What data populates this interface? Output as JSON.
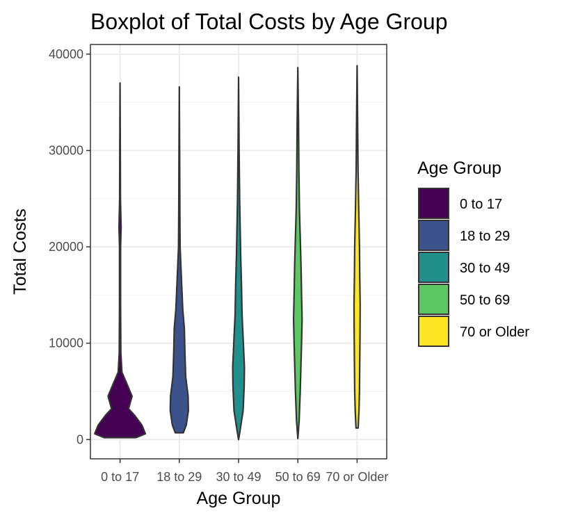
{
  "chart_data": {
    "type": "violin",
    "title": "Boxplot of Total Costs by Age Group",
    "xlabel": "Age Group",
    "ylabel": "Total Costs",
    "ylim": [
      -2000,
      41000
    ],
    "yticks": [
      0,
      10000,
      20000,
      30000,
      40000
    ],
    "ytick_labels": [
      "0",
      "10000",
      "20000",
      "30000",
      "40000"
    ],
    "grid": true,
    "legend": {
      "title": "Age Group",
      "position": "right"
    },
    "categories": [
      "0 to 17",
      "18 to 29",
      "30 to 49",
      "50 to 69",
      "70 or Older"
    ],
    "colors": [
      "#440154",
      "#3B528B",
      "#21908C",
      "#5DC863",
      "#FDE725"
    ],
    "series": [
      {
        "name": "0 to 17",
        "range": [
          200,
          37000
        ],
        "profile": [
          [
            200,
            0.6
          ],
          [
            600,
            0.95
          ],
          [
            1500,
            0.82
          ],
          [
            2500,
            0.55
          ],
          [
            3200,
            0.32
          ],
          [
            4500,
            0.45
          ],
          [
            5500,
            0.3
          ],
          [
            7000,
            0.07
          ],
          [
            9000,
            0.03
          ],
          [
            14000,
            0.02
          ],
          [
            20000,
            0.02
          ],
          [
            22000,
            0.04
          ],
          [
            25000,
            0.015
          ],
          [
            30000,
            0.01
          ],
          [
            37000,
            0.0
          ]
        ]
      },
      {
        "name": "18 to 29",
        "range": [
          700,
          36600
        ],
        "profile": [
          [
            700,
            0.15
          ],
          [
            1500,
            0.26
          ],
          [
            3000,
            0.34
          ],
          [
            4500,
            0.33
          ],
          [
            6500,
            0.24
          ],
          [
            9000,
            0.21
          ],
          [
            11500,
            0.19
          ],
          [
            13500,
            0.13
          ],
          [
            16000,
            0.09
          ],
          [
            18000,
            0.06
          ],
          [
            20000,
            0.03
          ],
          [
            24000,
            0.02
          ],
          [
            30000,
            0.012
          ],
          [
            36600,
            0.0
          ]
        ]
      },
      {
        "name": "30 to 49",
        "range": [
          0,
          37600
        ],
        "profile": [
          [
            0,
            0.0
          ],
          [
            1000,
            0.06
          ],
          [
            3000,
            0.17
          ],
          [
            5500,
            0.21
          ],
          [
            7500,
            0.22
          ],
          [
            10000,
            0.18
          ],
          [
            13000,
            0.13
          ],
          [
            16000,
            0.11
          ],
          [
            19000,
            0.08
          ],
          [
            22000,
            0.06
          ],
          [
            25000,
            0.04
          ],
          [
            30000,
            0.02
          ],
          [
            37600,
            0.0
          ]
        ]
      },
      {
        "name": "50 to 69",
        "range": [
          100,
          38600
        ],
        "profile": [
          [
            100,
            0.0
          ],
          [
            2000,
            0.05
          ],
          [
            5000,
            0.09
          ],
          [
            8000,
            0.12
          ],
          [
            10000,
            0.14
          ],
          [
            12500,
            0.16
          ],
          [
            15000,
            0.14
          ],
          [
            18000,
            0.12
          ],
          [
            21000,
            0.09
          ],
          [
            24000,
            0.06
          ],
          [
            28000,
            0.04
          ],
          [
            33000,
            0.025
          ],
          [
            38600,
            0.0
          ]
        ]
      },
      {
        "name": "70 or Older",
        "range": [
          1200,
          38800
        ],
        "profile": [
          [
            1200,
            0.04
          ],
          [
            3000,
            0.07
          ],
          [
            5000,
            0.09
          ],
          [
            8000,
            0.1
          ],
          [
            11000,
            0.11
          ],
          [
            14000,
            0.115
          ],
          [
            17000,
            0.1
          ],
          [
            20000,
            0.09
          ],
          [
            24000,
            0.06
          ],
          [
            28000,
            0.035
          ],
          [
            33000,
            0.02
          ],
          [
            38800,
            0.0
          ]
        ]
      }
    ]
  }
}
